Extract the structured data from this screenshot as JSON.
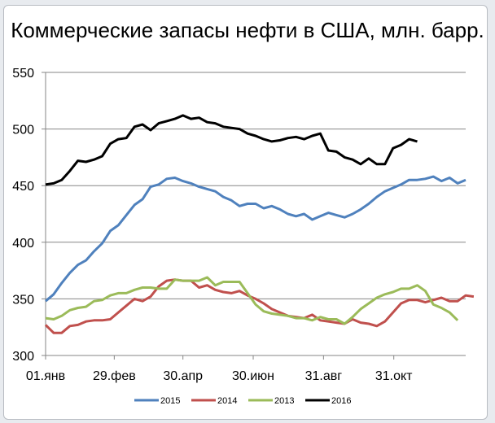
{
  "chart_data": {
    "type": "line",
    "title": "Коммерческие запасы нефти в США, млн. барр.",
    "xlabel": "",
    "ylabel": "",
    "ylim": [
      300,
      550
    ],
    "yticks": [
      300,
      350,
      400,
      450,
      500,
      550
    ],
    "xtick_labels": [
      "01.янв",
      "29.фев",
      "30.апр",
      "30.июн",
      "31.авг",
      "31.окт"
    ],
    "xtick_positions": [
      0,
      8.5,
      17,
      25.7,
      34.4,
      43.1
    ],
    "grid": "horizontal",
    "legend_position": "bottom",
    "x": "weekly points, week 0..51",
    "series": [
      {
        "name": "2015",
        "color": "#4f81bd",
        "values": [
          348,
          354,
          364,
          373,
          380,
          384,
          392,
          399,
          410,
          415,
          424,
          433,
          438,
          449,
          451,
          456,
          457,
          454,
          452,
          449,
          447,
          445,
          440,
          437,
          432,
          434,
          434,
          430,
          432,
          429,
          425,
          423,
          425,
          420,
          423,
          426,
          424,
          422,
          425,
          429,
          434,
          440,
          445,
          448,
          451,
          455,
          455,
          456,
          458,
          454,
          457,
          452,
          455
        ]
      },
      {
        "name": "2014",
        "color": "#c0504d",
        "values": [
          327,
          320,
          320,
          326,
          327,
          330,
          331,
          331,
          332,
          338,
          344,
          350,
          348,
          352,
          361,
          366,
          367,
          366,
          366,
          360,
          362,
          358,
          356,
          355,
          357,
          353,
          350,
          346,
          341,
          338,
          335,
          334,
          333,
          336,
          331,
          330,
          329,
          328,
          332,
          329,
          328,
          326,
          330,
          338,
          346,
          349,
          349,
          347,
          349,
          351,
          348,
          348,
          353,
          352
        ]
      },
      {
        "name": "2013",
        "color": "#9bbb59",
        "values": [
          333,
          332,
          335,
          340,
          342,
          343,
          348,
          349,
          353,
          355,
          355,
          358,
          360,
          360,
          359,
          359,
          367,
          366,
          366,
          366,
          369,
          362,
          365,
          365,
          365,
          355,
          345,
          339,
          337,
          336,
          335,
          333,
          333,
          331,
          334,
          332,
          332,
          328,
          334,
          341,
          346,
          351,
          354,
          356,
          359,
          359,
          362,
          357,
          345,
          342,
          338,
          331
        ]
      },
      {
        "name": "2016",
        "color": "#000000",
        "values": [
          451,
          452,
          455,
          463,
          472,
          471,
          473,
          476,
          487,
          491,
          492,
          502,
          504,
          499,
          505,
          507,
          509,
          512,
          509,
          510,
          506,
          505,
          502,
          501,
          500,
          496,
          494,
          491,
          489,
          490,
          492,
          493,
          491,
          494,
          496,
          481,
          480,
          475,
          473,
          469,
          474,
          469,
          469,
          483,
          486,
          491,
          489
        ]
      }
    ]
  },
  "legend": {
    "items": [
      "2015",
      "2014",
      "2013",
      "2016"
    ]
  }
}
